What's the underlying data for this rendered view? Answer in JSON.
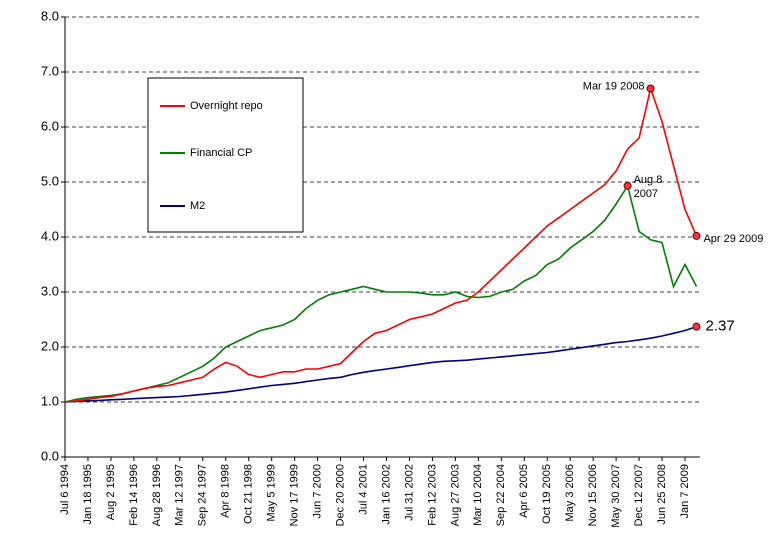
{
  "chart_data": {
    "type": "line",
    "categories": [
      "Jul 6 1994",
      null,
      "Jan 18 1995",
      null,
      "Aug 2 1995",
      null,
      "Feb 14 1996",
      null,
      "Aug 28 1996",
      null,
      "Mar 12 1997",
      null,
      "Sep 24 1997",
      null,
      "Apr 8 1998",
      null,
      "Oct 21 1998",
      null,
      "May 5 1999",
      null,
      "Nov 17 1999",
      null,
      "Jun 7 2000",
      null,
      "Dec 20 2000",
      null,
      "Jul 4 2001",
      null,
      "Jan 16 2002",
      null,
      "Jul 31 2002",
      null,
      "Feb 12 2003",
      null,
      "Aug 27 2003",
      null,
      "Mar 10 2004",
      null,
      "Sep 22 2004",
      null,
      "Apr 6 2005",
      null,
      "Oct 19 2005",
      null,
      "May 3 2006",
      null,
      "Nov 15 2006",
      null,
      "May 30 2007",
      null,
      "Dec 12 2007",
      null,
      "Jun 25 2008",
      null,
      "Jan 7 2009",
      null
    ],
    "series": [
      {
        "name": "Overnight repo",
        "color": "#ff0000",
        "values": [
          1.0,
          1.02,
          1.05,
          1.08,
          1.1,
          1.15,
          1.2,
          1.25,
          1.28,
          1.3,
          1.35,
          1.4,
          1.45,
          1.6,
          1.72,
          1.65,
          1.5,
          1.45,
          1.5,
          1.55,
          1.55,
          1.6,
          1.6,
          1.65,
          1.7,
          1.9,
          2.1,
          2.25,
          2.3,
          2.4,
          2.5,
          2.55,
          2.6,
          2.7,
          2.8,
          2.85,
          3.0,
          3.2,
          3.4,
          3.6,
          3.8,
          4.0,
          4.2,
          4.35,
          4.5,
          4.65,
          4.8,
          4.95,
          5.2,
          5.6,
          5.8,
          6.7,
          6.1,
          5.3,
          4.5,
          4.02
        ]
      },
      {
        "name": "Financial CP",
        "color": "#008000",
        "values": [
          1.0,
          1.05,
          1.08,
          1.1,
          1.12,
          1.15,
          1.2,
          1.25,
          1.3,
          1.35,
          1.45,
          1.55,
          1.65,
          1.8,
          2.0,
          2.1,
          2.2,
          2.3,
          2.35,
          2.4,
          2.5,
          2.7,
          2.85,
          2.95,
          3.0,
          3.05,
          3.1,
          3.05,
          3.0,
          3.0,
          3.0,
          2.98,
          2.95,
          2.95,
          3.0,
          2.92,
          2.9,
          2.92,
          3.0,
          3.05,
          3.2,
          3.3,
          3.5,
          3.6,
          3.8,
          3.95,
          4.1,
          4.3,
          4.6,
          4.93,
          4.1,
          3.95,
          3.9,
          3.1,
          3.5,
          3.1
        ]
      },
      {
        "name": "M2",
        "color": "#000080",
        "values": [
          1.0,
          1.01,
          1.02,
          1.03,
          1.04,
          1.05,
          1.06,
          1.07,
          1.08,
          1.09,
          1.1,
          1.12,
          1.14,
          1.16,
          1.18,
          1.21,
          1.24,
          1.27,
          1.3,
          1.32,
          1.34,
          1.37,
          1.4,
          1.43,
          1.45,
          1.5,
          1.54,
          1.57,
          1.6,
          1.63,
          1.66,
          1.69,
          1.72,
          1.74,
          1.75,
          1.76,
          1.78,
          1.8,
          1.82,
          1.84,
          1.86,
          1.88,
          1.9,
          1.93,
          1.96,
          1.99,
          2.02,
          2.05,
          2.08,
          2.1,
          2.13,
          2.16,
          2.2,
          2.25,
          2.3,
          2.37
        ]
      }
    ],
    "annotations": [
      {
        "text": "Mar 19 2008",
        "series": 0,
        "index": 51
      },
      {
        "lines": [
          "Aug 8",
          "2007"
        ],
        "series": 1,
        "index": 49
      },
      {
        "text": "Apr 29 2009",
        "series": 0,
        "index": 55
      },
      {
        "series": 2,
        "index": 55
      }
    ],
    "ylim": [
      0,
      8
    ],
    "yticks": [
      {
        "value": 0,
        "label": "0.0"
      },
      {
        "value": 1,
        "label": "1.0"
      },
      {
        "value": 2,
        "label": "2.0"
      },
      {
        "value": 3,
        "label": "3.0"
      },
      {
        "value": 4,
        "label": "4.0"
      },
      {
        "value": 5,
        "label": "5.0"
      },
      {
        "value": 6,
        "label": "6.0"
      },
      {
        "value": 7,
        "label": "7.0"
      },
      {
        "value": 8,
        "label": "8.0"
      }
    ],
    "grid": true,
    "legend": "upper left",
    "marker_color": "#ff3333"
  }
}
